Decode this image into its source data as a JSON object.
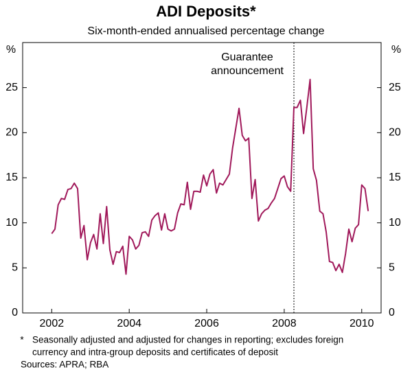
{
  "chart_data": {
    "type": "line",
    "title": "ADI Deposits*",
    "subtitle": "Six-month-ended annualised percentage change",
    "y_label": "%",
    "y2_label": "%",
    "color": "#a0185a",
    "x": [
      2002.5,
      2002.583,
      2002.667,
      2002.75,
      2002.833,
      2002.917,
      2003,
      2003.083,
      2003.167,
      2003.25,
      2003.333,
      2003.417,
      2003.5,
      2003.583,
      2003.667,
      2003.75,
      2003.833,
      2003.917,
      2004,
      2004.083,
      2004.167,
      2004.25,
      2004.333,
      2004.417,
      2004.5,
      2004.583,
      2004.667,
      2004.75,
      2004.833,
      2004.917,
      2005,
      2005.083,
      2005.167,
      2005.25,
      2005.333,
      2005.417,
      2005.5,
      2005.583,
      2005.667,
      2005.75,
      2005.833,
      2005.917,
      2006,
      2006.083,
      2006.167,
      2006.25,
      2006.333,
      2006.417,
      2006.5,
      2006.583,
      2006.667,
      2006.75,
      2006.833,
      2006.917,
      2007,
      2007.083,
      2007.167,
      2007.25,
      2007.333,
      2007.417,
      2007.5,
      2007.583,
      2007.667,
      2007.75,
      2007.833,
      2007.917,
      2008,
      2008.083,
      2008.167,
      2008.25,
      2008.333,
      2008.417,
      2008.5,
      2008.583,
      2008.667,
      2008.75,
      2008.833,
      2008.917,
      2009,
      2009.083,
      2009.167,
      2009.25,
      2009.333,
      2009.417,
      2009.5,
      2009.583,
      2009.667,
      2009.75,
      2009.833,
      2009.917,
      2010,
      2010.083,
      2010.167,
      2010.25,
      2010.333,
      2010.417,
      2010.5,
      2010.583,
      2010.667
    ],
    "values": [
      8.8,
      9.3,
      12.0,
      12.7,
      12.6,
      13.7,
      13.8,
      14.4,
      13.8,
      8.3,
      9.7,
      5.9,
      7.8,
      8.7,
      7.1,
      11.0,
      7.7,
      11.8,
      7.0,
      5.4,
      6.8,
      6.7,
      7.4,
      4.3,
      8.5,
      8.1,
      7.1,
      7.5,
      8.9,
      9.0,
      8.5,
      10.3,
      10.8,
      11.1,
      9.2,
      11.0,
      9.3,
      9.1,
      9.3,
      11.1,
      12.1,
      12.0,
      14.5,
      11.5,
      13.5,
      13.5,
      13.4,
      15.3,
      14.1,
      15.4,
      15.9,
      13.3,
      14.4,
      14.2,
      14.8,
      15.4,
      18.3,
      20.5,
      22.7,
      19.7,
      19.1,
      19.4,
      12.7,
      14.8,
      10.2,
      11.0,
      11.4,
      11.6,
      12.2,
      12.7,
      13.8,
      14.9,
      15.2,
      14.0,
      13.5,
      22.8,
      22.8,
      23.6,
      19.9,
      22.8,
      25.9,
      16.0,
      14.7,
      11.3,
      11.0,
      9.0,
      5.7,
      5.6,
      4.7,
      5.4,
      4.5,
      6.6,
      9.3,
      7.9,
      9.4,
      9.8,
      14.2,
      13.8,
      11.3
    ],
    "xlim": [
      2001.75,
      2011.0
    ],
    "xticks": [
      {
        "value": 2002.5,
        "label": "2002"
      },
      {
        "value": 2004.5,
        "label": "2004"
      },
      {
        "value": 2006.5,
        "label": "2006"
      },
      {
        "value": 2008.5,
        "label": "2008"
      },
      {
        "value": 2010.5,
        "label": "2010"
      }
    ],
    "ylim": [
      0,
      30
    ],
    "yticks": [
      0,
      5,
      10,
      15,
      20,
      25
    ],
    "y2lim": [
      0,
      30
    ],
    "y2ticks": [
      0,
      5,
      10,
      15,
      20,
      25
    ],
    "annotation": {
      "x": 2008.75,
      "lines": [
        "Guarantee",
        "announcement"
      ]
    },
    "footnote": {
      "marker": "*",
      "lines": [
        "Seasonally adjusted and adjusted for changes in reporting; excludes foreign",
        "currency and intra-group deposits and certificates of deposit"
      ]
    },
    "sources": "Sources: APRA; RBA"
  }
}
